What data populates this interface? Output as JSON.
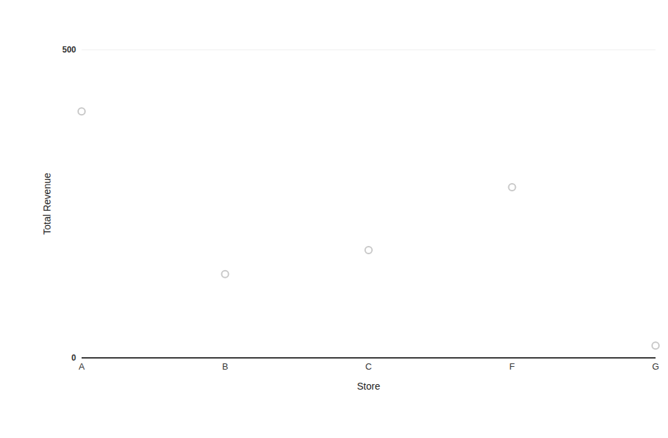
{
  "chart_data": {
    "type": "scatter",
    "categories": [
      "A",
      "B",
      "C",
      "F",
      "G"
    ],
    "values": [
      400,
      136,
      175,
      277,
      20
    ],
    "x_label": "Store",
    "y_label": "Total Revenue",
    "ylim": [
      0,
      500
    ],
    "yticks": [
      0,
      500
    ],
    "grid": true,
    "color": "#c8c8c8",
    "marker": "circle"
  }
}
